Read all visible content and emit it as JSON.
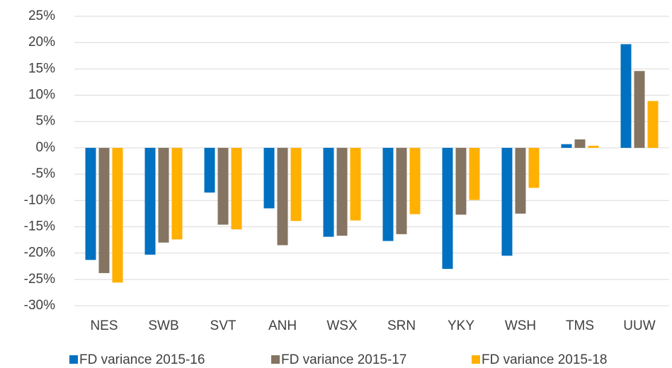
{
  "chart_data": {
    "type": "bar",
    "categories": [
      "NES",
      "SWB",
      "SVT",
      "ANH",
      "WSX",
      "SRN",
      "YKY",
      "WSH",
      "TMS",
      "UUW"
    ],
    "series": [
      {
        "name": "FD variance 2015-16",
        "color": "#0070c0",
        "values": [
          -21.3,
          -20.3,
          -8.5,
          -11.5,
          -16.9,
          -17.7,
          -23.0,
          -20.5,
          0.7,
          19.7
        ]
      },
      {
        "name": "FD variance 2015-17",
        "color": "#847461",
        "values": [
          -23.8,
          -18.0,
          -14.6,
          -18.5,
          -16.7,
          -16.4,
          -12.7,
          -12.5,
          1.6,
          14.6
        ]
      },
      {
        "name": "FD variance 2015-18",
        "color": "#ffb000",
        "values": [
          -25.6,
          -17.4,
          -15.5,
          -13.9,
          -13.8,
          -12.6,
          -9.9,
          -7.6,
          0.4,
          8.9
        ]
      }
    ],
    "ylim": [
      -30,
      25
    ],
    "yticks": [
      {
        "value": -30,
        "label": "-30%"
      },
      {
        "value": -25,
        "label": "-25%"
      },
      {
        "value": -20,
        "label": "-20%"
      },
      {
        "value": -15,
        "label": "-15%"
      },
      {
        "value": -10,
        "label": "-10%"
      },
      {
        "value": -5,
        "label": "-5%"
      },
      {
        "value": 0,
        "label": "0%"
      },
      {
        "value": 5,
        "label": "5%"
      },
      {
        "value": 10,
        "label": "10%"
      },
      {
        "value": 15,
        "label": "15%"
      },
      {
        "value": 20,
        "label": "20%"
      },
      {
        "value": 25,
        "label": "25%"
      }
    ],
    "grid": true,
    "legend": "bottom"
  }
}
